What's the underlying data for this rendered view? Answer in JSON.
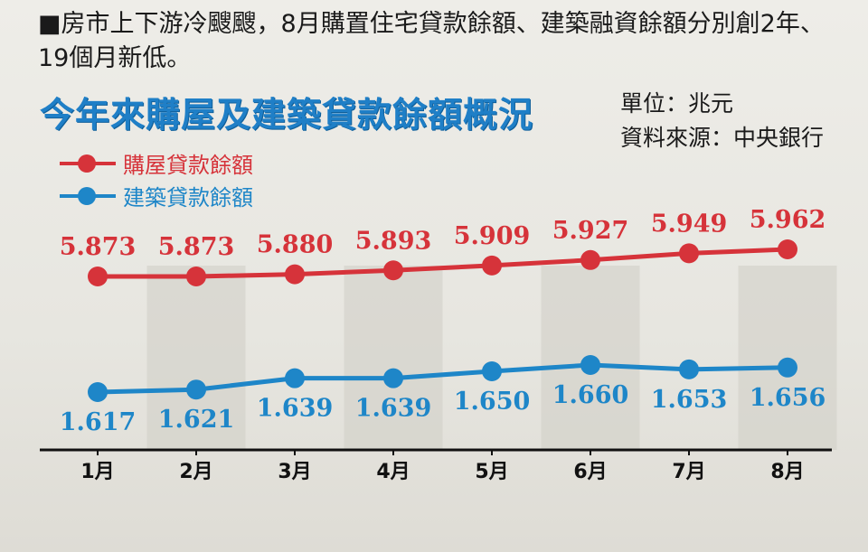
{
  "headline": "■房市上下游冷颼颼，8月購置住宅貸款餘額、建築融資餘額分別創2年、19個月新低。",
  "meta": {
    "unit": "單位：兆元",
    "source": "資料來源：中央銀行"
  },
  "colors": {
    "housing": "#d6333a",
    "construction": "#1e86c8",
    "title": "#1f7fc7"
  },
  "chart_data": {
    "type": "line",
    "title": "今年來購屋及建築貸款餘額概況",
    "categories": [
      "1月",
      "2月",
      "3月",
      "4月",
      "5月",
      "6月",
      "7月",
      "8月"
    ],
    "series": [
      {
        "name": "購屋貸款餘額",
        "values": [
          5.873,
          5.873,
          5.88,
          5.893,
          5.909,
          5.927,
          5.949,
          5.962
        ],
        "labels": [
          "5.873",
          "5.873",
          "5.880",
          "5.893",
          "5.909",
          "5.927",
          "5.949",
          "5.962"
        ]
      },
      {
        "name": "建築貸款餘額",
        "values": [
          1.617,
          1.621,
          1.639,
          1.639,
          1.65,
          1.66,
          1.653,
          1.656
        ],
        "labels": [
          "1.617",
          "1.621",
          "1.639",
          "1.639",
          "1.650",
          "1.660",
          "1.653",
          "1.656"
        ]
      }
    ],
    "xlabel": "",
    "ylabel": "",
    "grid": false,
    "legend": "top-left"
  }
}
